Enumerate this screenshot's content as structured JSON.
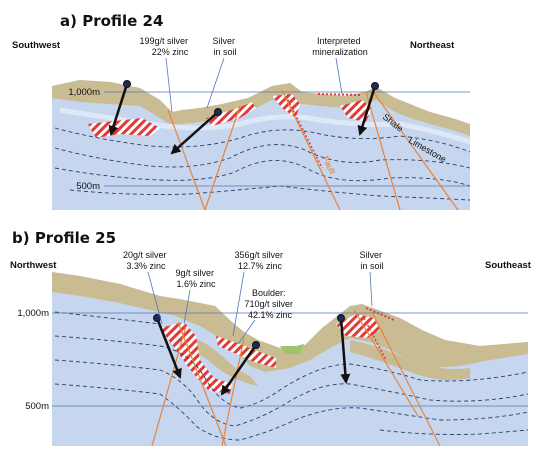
{
  "profiles": [
    {
      "title": "a) Profile 24",
      "left_direction": "Southwest",
      "right_direction": "Northeast",
      "elevations": [
        "1,000m",
        "500m"
      ],
      "annotations": [
        {
          "lines": [
            "199g/t silver",
            "22% zinc"
          ]
        },
        {
          "lines": [
            "Silver",
            "in soil"
          ]
        },
        {
          "lines": [
            "Interpreted",
            "mineralization"
          ]
        }
      ],
      "rock_labels": [
        "Shale",
        "Limestone",
        "Fault"
      ]
    },
    {
      "title": "b) Profile 25",
      "left_direction": "Northwest",
      "right_direction": "Southeast",
      "elevations": [
        "1,000m",
        "500m"
      ],
      "annotations": [
        {
          "lines": [
            "20g/t silver",
            "3.3% zinc"
          ]
        },
        {
          "lines": [
            "9g/t silver",
            "1.6% zinc"
          ]
        },
        {
          "lines": [
            "356g/t silver",
            "12.7% zinc"
          ]
        },
        {
          "lines": [
            "Boulder:",
            "710g/t silver",
            "42.1% zinc"
          ]
        },
        {
          "lines": [
            "Silver",
            "in soil"
          ]
        }
      ]
    }
  ],
  "colors": {
    "limestone": "#c6d6ee",
    "shale": "#c9bc93",
    "mineralization": "#e03a3a",
    "fault": "#e8843a",
    "reference_line": "#4f79b5",
    "drill_hole": "#111111",
    "soil_anomaly": "#9fc36a"
  }
}
